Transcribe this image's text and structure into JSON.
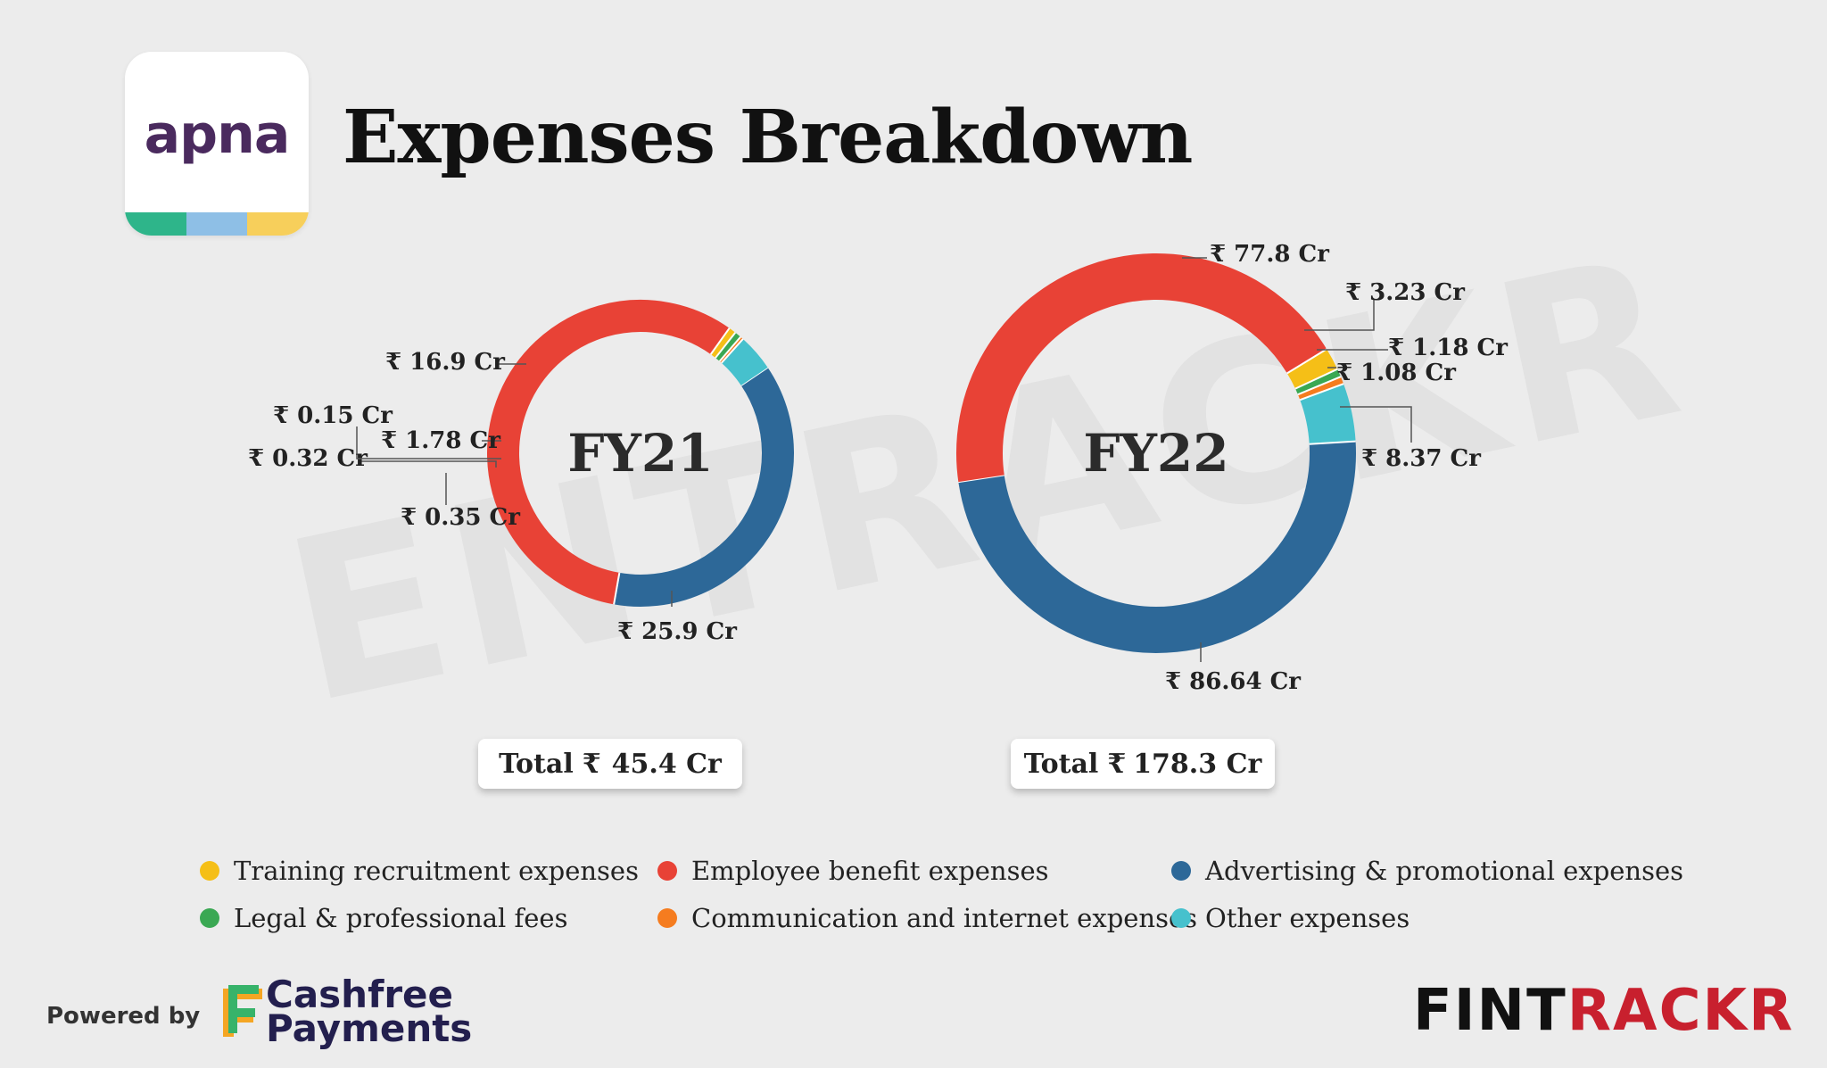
{
  "brand": {
    "logo_text": "apna",
    "stripe_colors": [
      "#2eb58a",
      "#8ebfe6",
      "#f7cf5b"
    ]
  },
  "title": "Expenses Breakdown",
  "watermark": "ENTRACKR",
  "colors": {
    "training": "#f5bf17",
    "employee": "#e84236",
    "advertising": "#2d6898",
    "legal": "#3aa853",
    "communication": "#f57c1f",
    "other": "#46c1cd"
  },
  "chart_data": [
    {
      "type": "donut",
      "center_label": "FY21",
      "total_prefix": "Total",
      "total_value": "45.4 Cr",
      "slices": [
        {
          "category": "Advertising & promotional expenses",
          "value": 16.9,
          "label": "16.9 Cr"
        },
        {
          "category": "Employee benefit expenses",
          "value": 25.9,
          "label": "25.9 Cr"
        },
        {
          "category": "Training recruitment expenses",
          "value": 0.35,
          "label": "0.35 Cr"
        },
        {
          "category": "Legal & professional fees",
          "value": 0.32,
          "label": "0.32 Cr"
        },
        {
          "category": "Communication and internet expenses",
          "value": 0.15,
          "label": "0.15 Cr"
        },
        {
          "category": "Other expenses",
          "value": 1.78,
          "label": "1.78 Cr"
        }
      ]
    },
    {
      "type": "donut",
      "center_label": "FY22",
      "total_prefix": "Total",
      "total_value": "178.3 Cr",
      "slices": [
        {
          "category": "Employee benefit expenses",
          "value": 77.8,
          "label": "77.8 Cr"
        },
        {
          "category": "Training recruitment expenses",
          "value": 3.23,
          "label": "3.23 Cr"
        },
        {
          "category": "Legal & professional fees",
          "value": 1.18,
          "label": "1.18 Cr"
        },
        {
          "category": "Communication and internet expenses",
          "value": 1.08,
          "label": "1.08 Cr"
        },
        {
          "category": "Other expenses",
          "value": 8.37,
          "label": "8.37 Cr"
        },
        {
          "category": "Advertising & promotional expenses",
          "value": 86.64,
          "label": "86.64 Cr"
        }
      ]
    }
  ],
  "currency_symbol": "₹",
  "legend": [
    {
      "label": "Training recruitment expenses",
      "color": "#f5bf17"
    },
    {
      "label": "Employee benefit expenses",
      "color": "#e84236"
    },
    {
      "label": "Advertising & promotional expenses",
      "color": "#2d6898"
    },
    {
      "label": "Legal & professional fees",
      "color": "#3aa853"
    },
    {
      "label": "Communication and internet expenses",
      "color": "#f57c1f"
    },
    {
      "label": "Other expenses",
      "color": "#46c1cd"
    }
  ],
  "footer": {
    "powered_by": "Powered by",
    "partner_line1": "Cashfree",
    "partner_line2": "Payments",
    "fintrackr_dark": "FINT",
    "fintrackr_red": "RACKR"
  }
}
